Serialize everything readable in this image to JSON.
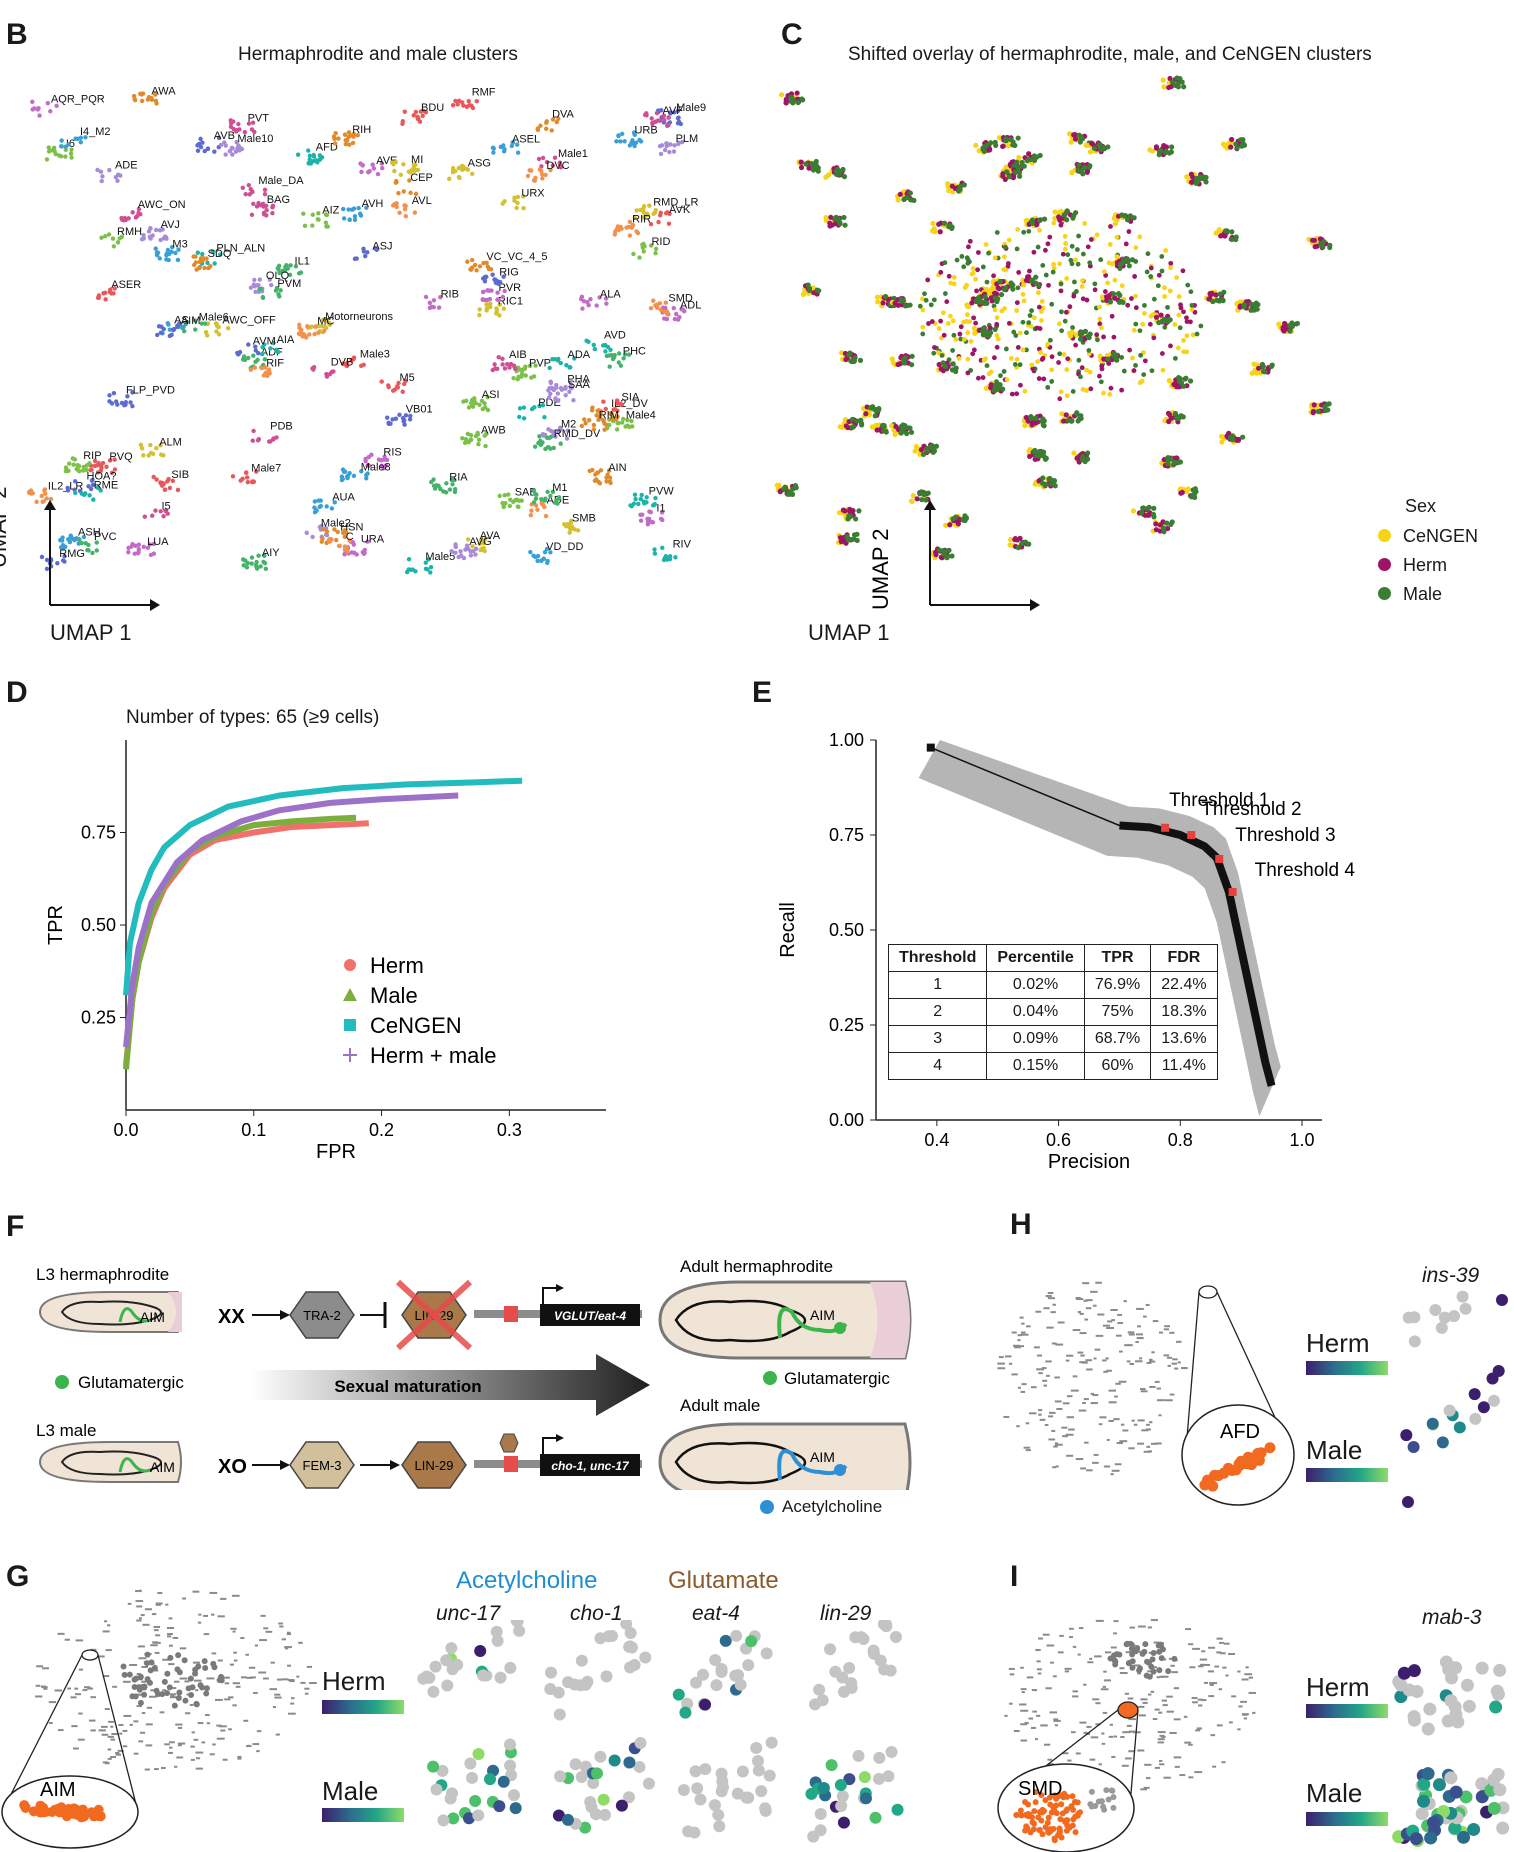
{
  "panels": {
    "B": {
      "letter": "B",
      "title": "Hermaphrodite and male clusters",
      "axis_y": "UMAP 2",
      "axis_x": "UMAP 1",
      "cluster_labels": [
        "Male3",
        "ASH",
        "ASI",
        "ADL",
        "AWA",
        "AFD",
        "ASG",
        "ASJ",
        "BAG",
        "ADF",
        "PHA",
        "IL2_LR",
        "ASER",
        "ASEL",
        "Male4",
        "AQR_PQR",
        "IL2_DV",
        "ADA",
        "AWC_OFF",
        "FLP_PVD",
        "Male1",
        "PHC",
        "Male2",
        "RIF",
        "PVQ",
        "AVH",
        "AWB",
        "URA",
        "HSN",
        "Male5",
        "URX",
        "HOA?",
        "AWC_ON",
        "Male6",
        "ADE",
        "C",
        "RMF",
        "URB",
        "RMH",
        "ALA",
        "CEP",
        "PDE",
        "RIC1",
        "RMG",
        "Male_DA",
        "IL1",
        "OLQ",
        "ADE",
        "BDU",
        "AIM",
        "RIP",
        "RIS",
        "RIH",
        "RME",
        "AVA",
        "AVB",
        "PVT",
        "RIA",
        "M2",
        "AVL",
        "Male7",
        "Male8",
        "RID",
        "LUA",
        "VC_VC_4_5",
        "AVD",
        "RMD_LR",
        "Male9",
        "AVF",
        "RMD_DV",
        "AVG",
        "RIR",
        "M5",
        "M3",
        "I6",
        "I1",
        "DVA",
        "PLN_ALN",
        "Motorneurons",
        "VB01",
        "I5",
        "PVC",
        "SAA",
        "SMD",
        "SIA",
        "I4_M2",
        "SAB",
        "PVR",
        "SDQ",
        "AIA",
        "SMB",
        "AS",
        "PDB",
        "AIY",
        "Male10",
        "DVC",
        "SIB",
        "AUA",
        "PVP",
        "AVE",
        "AIN",
        "PVW",
        "ALM",
        "AVM",
        "AIB",
        "PVM",
        "PLM",
        "MC",
        "AVK",
        "VD_DD",
        "AIZ",
        "RIB",
        "RIM",
        "RIV",
        "MI",
        "RIG",
        "DVB",
        "M1",
        "AVJ"
      ]
    },
    "C": {
      "letter": "C",
      "title": "Shifted overlay of hermaphrodite, male, and CeNGEN clusters",
      "axis_y": "UMAP 2",
      "axis_x": "UMAP 1",
      "legend_title": "Sex",
      "legend": [
        {
          "label": "CeNGEN",
          "color": "#f7d417"
        },
        {
          "label": "Herm",
          "color": "#9e1467"
        },
        {
          "label": "Male",
          "color": "#3a7d33"
        }
      ]
    },
    "D": {
      "letter": "D",
      "title": "Number of types: 65 (≥9 cells)"
    },
    "E": {
      "letter": "E",
      "thresholds": [
        "Threshold 1",
        "Threshold 2",
        "Threshold 3",
        "Threshold 4"
      ],
      "table": {
        "header": [
          "Threshold",
          "Percentile",
          "TPR",
          "FDR"
        ],
        "rows": [
          [
            "1",
            "0.02%",
            "76.9%",
            "22.4%"
          ],
          [
            "2",
            "0.04%",
            "75%",
            "18.3%"
          ],
          [
            "3",
            "0.09%",
            "68.7%",
            "13.6%"
          ],
          [
            "4",
            "0.15%",
            "60%",
            "11.4%"
          ]
        ]
      }
    },
    "F": {
      "letter": "F",
      "l3_herm": "L3 hermaphrodite",
      "l3_male": "L3 male",
      "xx": "XX",
      "xo": "XO",
      "tra2": "TRA-2",
      "lin29_crossed": "LIN-29",
      "fem3": "FEM-3",
      "lin29": "LIN-29",
      "lin29_small": "LIN-29",
      "herm_gene": "VGLUT/eat-4",
      "male_gene": "cho-1, unc-17",
      "adult_herm": "Adult hermaphrodite",
      "adult_male": "Adult male",
      "aim": "AIM",
      "glut_left": "Glutamatergic",
      "glut_right": "Glutamatergic",
      "ach": "Acetylcholine",
      "maturation": "Sexual maturation"
    },
    "G": {
      "letter": "G",
      "zoom_label": "AIM",
      "group1": "Acetylcholine",
      "group2": "Glutamate",
      "genes": [
        "unc-17",
        "cho-1",
        "eat-4",
        "lin-29"
      ],
      "row1": "Herm",
      "row2": "Male",
      "scale_ticks": [
        "-0.5",
        "0.0",
        "0.5",
        "1.0"
      ]
    },
    "H": {
      "letter": "H",
      "zoom_label": "AFD",
      "gene": "ins-39",
      "row1": "Herm",
      "row2": "Male",
      "scale1_ticks": [
        "0.0",
        "0.5",
        "1.0"
      ],
      "scale2_ticks": [
        "0.0",
        "0.5",
        "1.0",
        "1.5"
      ]
    },
    "I": {
      "letter": "I",
      "zoom_label": "SMD",
      "gene": "mab-3",
      "row1": "Herm",
      "row2": "Male",
      "scale_ticks": [
        "-0.5",
        "0.0",
        "0.5",
        "1.0"
      ]
    }
  },
  "colors": {
    "herm": "#f0706b",
    "male": "#7cae3d",
    "cengen": "#22bcbf",
    "hermmale": "#9b72c8",
    "threshold": "#e8413c",
    "orange": "#f26a1f",
    "acetylcholine": "#1f8ed0",
    "glutamate": "#8b5a2b"
  },
  "chart_data": [
    {
      "type": "line",
      "title": "Number of types: 65 (≥9 cells)",
      "xlabel": "FPR",
      "ylabel": "TPR",
      "xlim": [
        0,
        0.36
      ],
      "ylim": [
        0,
        1
      ],
      "xticks": [
        "0.0",
        "0.1",
        "0.2",
        "0.3"
      ],
      "yticks": [
        "0.25",
        "0.50",
        "0.75"
      ],
      "legend_position": "bottom-right",
      "series": [
        {
          "name": "Herm",
          "x": [
            0.0,
            0.005,
            0.01,
            0.02,
            0.03,
            0.05,
            0.07,
            0.1,
            0.13,
            0.16,
            0.19
          ],
          "y": [
            0.12,
            0.3,
            0.4,
            0.52,
            0.6,
            0.69,
            0.73,
            0.75,
            0.765,
            0.77,
            0.775
          ]
        },
        {
          "name": "Male",
          "x": [
            0.0,
            0.005,
            0.01,
            0.02,
            0.03,
            0.05,
            0.07,
            0.1,
            0.13,
            0.16,
            0.18
          ],
          "y": [
            0.11,
            0.3,
            0.4,
            0.53,
            0.61,
            0.7,
            0.74,
            0.77,
            0.78,
            0.787,
            0.79
          ]
        },
        {
          "name": "CeNGEN",
          "x": [
            0.0,
            0.003,
            0.01,
            0.02,
            0.03,
            0.05,
            0.08,
            0.12,
            0.17,
            0.22,
            0.27,
            0.31
          ],
          "y": [
            0.31,
            0.45,
            0.56,
            0.65,
            0.71,
            0.77,
            0.82,
            0.85,
            0.87,
            0.88,
            0.885,
            0.89
          ]
        },
        {
          "name": "Herm + male",
          "x": [
            0.0,
            0.005,
            0.01,
            0.02,
            0.04,
            0.06,
            0.09,
            0.12,
            0.16,
            0.2,
            0.26
          ],
          "y": [
            0.17,
            0.34,
            0.44,
            0.56,
            0.67,
            0.73,
            0.78,
            0.81,
            0.83,
            0.84,
            0.85
          ]
        }
      ]
    },
    {
      "type": "line",
      "xlabel": "Precision",
      "ylabel": "Recall",
      "xlim": [
        0.3,
        1.0
      ],
      "ylim": [
        0,
        1
      ],
      "xticks": [
        "0.4",
        "0.6",
        "0.8",
        "1.0"
      ],
      "yticks": [
        "0.00",
        "0.25",
        "0.50",
        "0.75",
        "1.00"
      ],
      "series": [
        {
          "name": "",
          "x": [
            0.39,
            0.7,
            0.75,
            0.8,
            0.84,
            0.86,
            0.88,
            0.9,
            0.92,
            0.94,
            0.95
          ],
          "y": [
            0.98,
            0.775,
            0.77,
            0.75,
            0.72,
            0.69,
            0.6,
            0.45,
            0.3,
            0.15,
            0.09
          ]
        }
      ],
      "thresholds": [
        {
          "x": 0.775,
          "y": 0.769
        },
        {
          "x": 0.818,
          "y": 0.75
        },
        {
          "x": 0.864,
          "y": 0.687
        },
        {
          "x": 0.886,
          "y": 0.6
        }
      ]
    }
  ]
}
